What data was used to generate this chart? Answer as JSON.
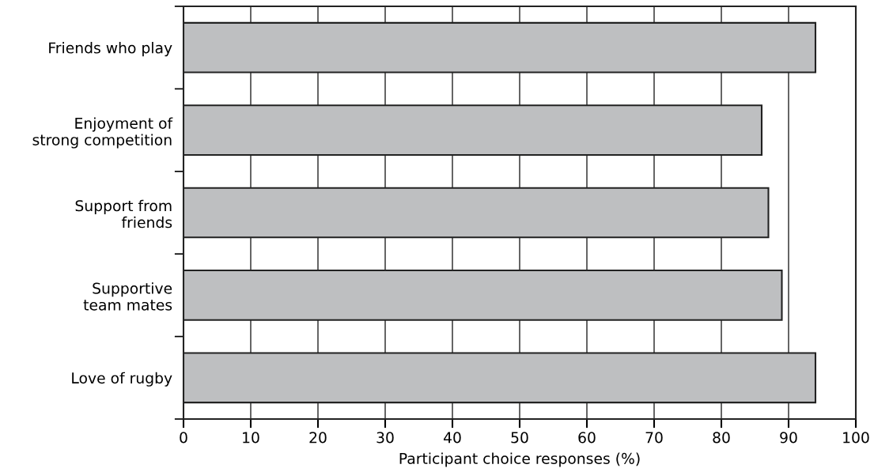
{
  "chart_data": {
    "type": "bar",
    "orientation": "horizontal",
    "xlabel": "Participant choice responses (%)",
    "categories": [
      "Friends who play",
      "Enjoyment of\nstrong competition",
      "Support from\nfriends",
      "Supportive\nteam mates",
      "Love of rugby"
    ],
    "values": [
      94,
      86,
      87,
      89,
      94
    ],
    "color": "#bebfc1",
    "xlim": [
      0,
      100
    ],
    "xticks": [
      0,
      10,
      20,
      30,
      40,
      50,
      60,
      70,
      80,
      90,
      100
    ],
    "grid": "x",
    "legend": false
  }
}
